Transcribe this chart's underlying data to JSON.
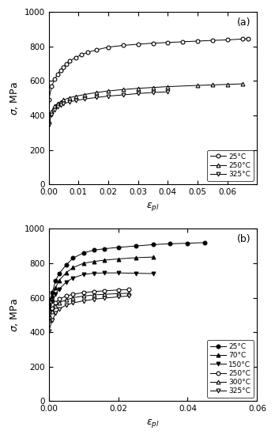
{
  "panel_a": {
    "title": "(a)",
    "xlabel": "$\\varepsilon_{pl}$",
    "ylabel": "$\\sigma$, MPa",
    "xlim": [
      0.0,
      0.07
    ],
    "ylim": [
      0,
      1000
    ],
    "xticks": [
      0.0,
      0.01,
      0.02,
      0.03,
      0.04,
      0.05,
      0.06
    ],
    "yticks": [
      0,
      200,
      400,
      600,
      800,
      1000
    ],
    "series": [
      {
        "label": "25°C",
        "marker": "o",
        "filled": false,
        "x": [
          0.0,
          0.001,
          0.002,
          0.003,
          0.004,
          0.005,
          0.006,
          0.007,
          0.009,
          0.011,
          0.013,
          0.016,
          0.02,
          0.025,
          0.03,
          0.035,
          0.04,
          0.045,
          0.05,
          0.055,
          0.06,
          0.065,
          0.067
        ],
        "y": [
          490,
          570,
          610,
          640,
          660,
          680,
          700,
          715,
          735,
          752,
          765,
          780,
          796,
          806,
          813,
          819,
          823,
          827,
          831,
          835,
          838,
          843,
          846
        ]
      },
      {
        "label": "250°C",
        "marker": "^",
        "filled": false,
        "x": [
          0.0,
          0.001,
          0.002,
          0.003,
          0.004,
          0.005,
          0.007,
          0.009,
          0.012,
          0.016,
          0.02,
          0.025,
          0.03,
          0.035,
          0.04,
          0.05,
          0.055,
          0.06,
          0.065
        ],
        "y": [
          370,
          425,
          455,
          470,
          480,
          490,
          503,
          511,
          521,
          533,
          542,
          550,
          557,
          562,
          567,
          574,
          577,
          580,
          583
        ]
      },
      {
        "label": "325°C",
        "marker": "v",
        "filled": false,
        "x": [
          0.0,
          0.001,
          0.002,
          0.003,
          0.004,
          0.005,
          0.007,
          0.009,
          0.012,
          0.016,
          0.02,
          0.025,
          0.03,
          0.035,
          0.04
        ],
        "y": [
          345,
          405,
          433,
          450,
          460,
          468,
          478,
          486,
          495,
          504,
          512,
          519,
          527,
          533,
          537
        ]
      }
    ]
  },
  "panel_b": {
    "title": "(b)",
    "xlabel": "$\\varepsilon_{pl}$",
    "ylabel": "$\\sigma$, MPa",
    "xlim": [
      0.0,
      0.06
    ],
    "ylim": [
      0,
      1000
    ],
    "xticks": [
      0.0,
      0.02,
      0.04,
      0.06
    ],
    "yticks": [
      0,
      200,
      400,
      600,
      800,
      1000
    ],
    "series": [
      {
        "label": "25°C",
        "marker": "o",
        "filled": true,
        "x": [
          0.0,
          0.001,
          0.002,
          0.003,
          0.005,
          0.007,
          0.01,
          0.013,
          0.016,
          0.02,
          0.025,
          0.03,
          0.035,
          0.04,
          0.045
        ],
        "y": [
          560,
          630,
          700,
          740,
          790,
          830,
          860,
          876,
          884,
          892,
          900,
          908,
          913,
          916,
          920
        ]
      },
      {
        "label": "70°C",
        "marker": "^",
        "filled": true,
        "x": [
          0.0,
          0.001,
          0.002,
          0.003,
          0.005,
          0.007,
          0.01,
          0.013,
          0.016,
          0.02,
          0.025,
          0.03
        ],
        "y": [
          555,
          610,
          660,
          700,
          745,
          775,
          800,
          810,
          818,
          825,
          832,
          836
        ]
      },
      {
        "label": "150°C",
        "marker": "v",
        "filled": true,
        "x": [
          0.0,
          0.001,
          0.002,
          0.003,
          0.005,
          0.007,
          0.01,
          0.013,
          0.016,
          0.02,
          0.025,
          0.03
        ],
        "y": [
          530,
          580,
          620,
          650,
          690,
          715,
          735,
          742,
          744,
          744,
          742,
          740
        ]
      },
      {
        "label": "250°C",
        "marker": "o",
        "filled": false,
        "x": [
          0.0,
          0.001,
          0.002,
          0.003,
          0.005,
          0.007,
          0.01,
          0.013,
          0.016,
          0.02,
          0.023
        ],
        "y": [
          490,
          540,
          572,
          592,
          610,
          620,
          630,
          636,
          640,
          645,
          648
        ]
      },
      {
        "label": "300°C",
        "marker": "^",
        "filled": false,
        "x": [
          0.0,
          0.001,
          0.002,
          0.003,
          0.005,
          0.007,
          0.01,
          0.013,
          0.016,
          0.02,
          0.023
        ],
        "y": [
          470,
          520,
          552,
          572,
          588,
          600,
          610,
          616,
          620,
          624,
          626
        ]
      },
      {
        "label": "325°C",
        "marker": "v",
        "filled": false,
        "x": [
          0.0,
          0.001,
          0.002,
          0.003,
          0.005,
          0.007,
          0.01,
          0.013,
          0.016,
          0.02,
          0.023
        ],
        "y": [
          405,
          470,
          510,
          535,
          557,
          570,
          582,
          591,
          598,
          605,
          610
        ]
      }
    ]
  }
}
